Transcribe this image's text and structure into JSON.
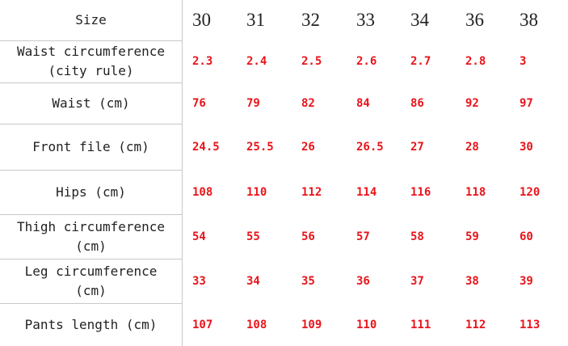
{
  "table": {
    "header": [
      "Size",
      "30",
      "31",
      "32",
      "33",
      "34",
      "36",
      "38"
    ],
    "rows": [
      [
        "Waist circumference\n(city rule)",
        "2.3",
        "2.4",
        "2.5",
        "2.6",
        "2.7",
        "2.8",
        "3"
      ],
      [
        "Waist (cm)",
        "76",
        "79",
        "82",
        "84",
        "86",
        "92",
        "97"
      ],
      [
        "Front file (cm)",
        "24.5",
        "25.5",
        "26",
        "26.5",
        "27",
        "28",
        "30"
      ],
      [
        "Hips (cm)",
        "108",
        "110",
        "112",
        "114",
        "116",
        "118",
        "120"
      ],
      [
        "Thigh circumference\n(cm)",
        "54",
        "55",
        "56",
        "57",
        "58",
        "59",
        "60"
      ],
      [
        "Leg circumference\n(cm)",
        "33",
        "34",
        "35",
        "36",
        "37",
        "38",
        "39"
      ],
      [
        "Pants length (cm)",
        "107",
        "108",
        "109",
        "110",
        "111",
        "112",
        "113"
      ]
    ]
  }
}
